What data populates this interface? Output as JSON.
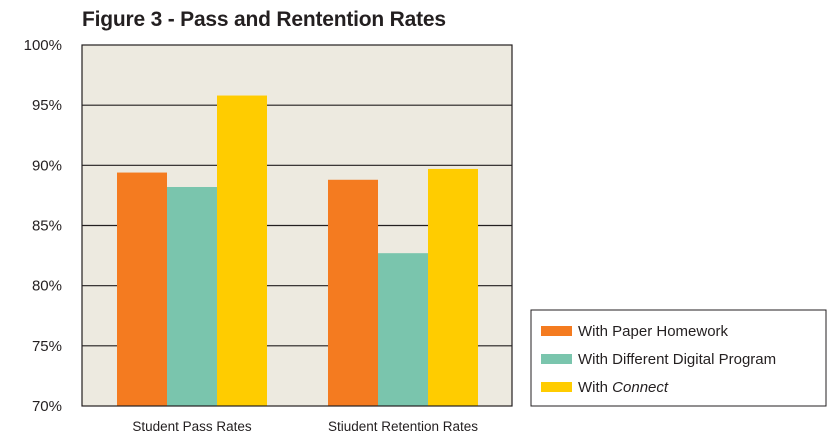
{
  "chart_data": {
    "type": "bar",
    "title": "Figure 3 - Pass and Rentention Rates",
    "xlabel": "",
    "ylabel": "",
    "categories": [
      "Student Pass Rates",
      "Stiudent Retention Rates"
    ],
    "series": [
      {
        "name": "With Paper Homework",
        "color": "#f47b20",
        "values": [
          89.4,
          88.8
        ]
      },
      {
        "name": "With Different Digital Program",
        "color": "#7ac5ad",
        "values": [
          88.2,
          82.7
        ]
      },
      {
        "name": "With Connect",
        "color": "#ffcc00",
        "values": [
          95.8,
          89.7
        ]
      }
    ],
    "ylim": [
      70,
      100
    ],
    "yticks": [
      70,
      75,
      80,
      85,
      90,
      95,
      100
    ],
    "ytick_labels": [
      "70%",
      "75%",
      "80%",
      "85%",
      "90%",
      "95%",
      "100%"
    ],
    "grid": true,
    "plot_background": "#edeae0",
    "legend_position": "bottom-right outside"
  }
}
